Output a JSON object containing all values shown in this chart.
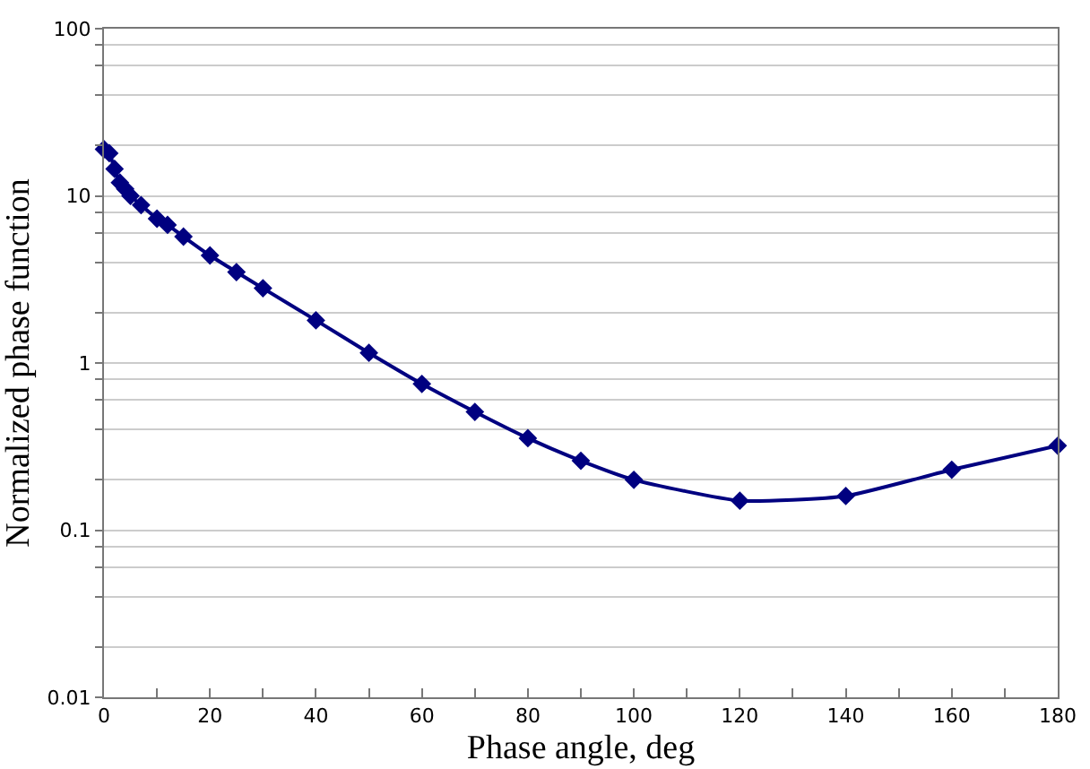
{
  "chart_data": {
    "type": "line",
    "xlabel": "Phase angle, deg",
    "ylabel": "Normalized phase function",
    "x": [
      0,
      1,
      2,
      3,
      4,
      5,
      7,
      10,
      12,
      15,
      20,
      25,
      30,
      40,
      50,
      60,
      70,
      80,
      90,
      100,
      120,
      140,
      160,
      180
    ],
    "series": [
      {
        "color": "#000080",
        "values": [
          19,
          18,
          14.5,
          12,
          11,
          10,
          8.8,
          7.3,
          6.7,
          5.7,
          4.4,
          3.5,
          2.8,
          1.8,
          1.15,
          0.75,
          0.51,
          0.355,
          0.26,
          0.2,
          0.15,
          0.16,
          0.23,
          0.32
        ]
      }
    ],
    "xlim": [
      0,
      180
    ],
    "xticks": [
      0,
      {
        "value": 10,
        "label": null
      },
      20,
      {
        "value": 30,
        "label": null
      },
      40,
      {
        "value": 50,
        "label": null
      },
      60,
      {
        "value": 70,
        "label": null
      },
      80,
      {
        "value": 90,
        "label": null
      },
      100,
      {
        "value": 110,
        "label": null
      },
      120,
      {
        "value": 130,
        "label": null
      },
      140,
      {
        "value": 150,
        "label": null
      },
      160,
      {
        "value": 170,
        "label": null
      },
      180
    ],
    "ylim": [
      0.01,
      100
    ],
    "yticks": [
      0.01,
      {
        "value": 0.02,
        "label": null
      },
      {
        "value": 0.04,
        "label": null
      },
      {
        "value": 0.06,
        "label": null
      },
      {
        "value": 0.08,
        "label": null
      },
      0.1,
      {
        "value": 0.2,
        "label": null
      },
      {
        "value": 0.4,
        "label": null
      },
      {
        "value": 0.6,
        "label": null
      },
      {
        "value": 0.8,
        "label": null
      },
      1,
      {
        "value": 2,
        "label": null
      },
      {
        "value": 4,
        "label": null
      },
      {
        "value": 6,
        "label": null
      },
      {
        "value": 8,
        "label": null
      },
      10,
      {
        "value": 20,
        "label": null
      },
      {
        "value": 40,
        "label": null
      },
      {
        "value": 60,
        "label": null
      },
      {
        "value": 80,
        "label": null
      },
      100
    ],
    "log": "y",
    "grid": "y",
    "legend": false,
    "marker": "diamond",
    "line_style": "solid"
  }
}
